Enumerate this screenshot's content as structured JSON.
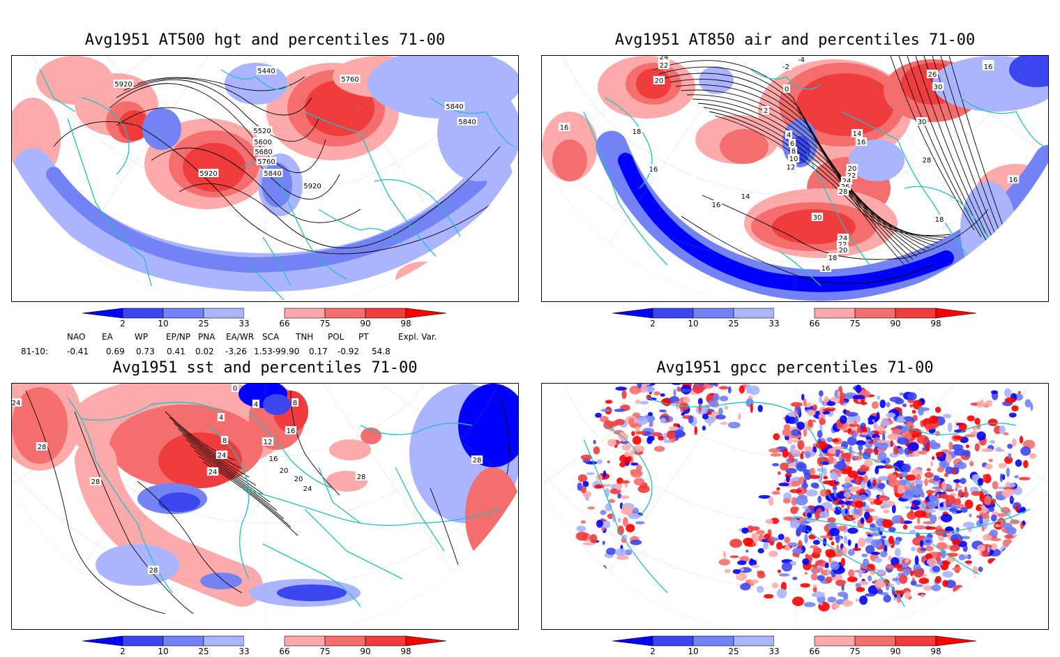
{
  "panels": [
    {
      "id": "hgt500",
      "title": "Avg1951 AT500 hgt and percentiles 71-00",
      "contour_labels": [
        "5440",
        "5760",
        "5920",
        "5520",
        "5600",
        "5680",
        "5760",
        "5840",
        "5920",
        "5920",
        "5840",
        "5840"
      ]
    },
    {
      "id": "air850",
      "title": "Avg1951 AT850 air and percentiles 71-00",
      "contour_labels": [
        "24",
        "22",
        "20",
        "-4",
        "-2",
        "0",
        "2",
        "4",
        "6",
        "8",
        "10",
        "12",
        "14",
        "16",
        "16",
        "18",
        "16",
        "16",
        "26",
        "30",
        "30",
        "28",
        "14",
        "16",
        "20",
        "22",
        "24",
        "26",
        "28",
        "30",
        "24",
        "22",
        "20",
        "18",
        "16",
        "16",
        "16",
        "18"
      ]
    },
    {
      "id": "sst",
      "title": "Avg1951 sst and percentiles 71-00",
      "contour_labels": [
        "24",
        "28",
        "28",
        "0",
        "4",
        "4",
        "8",
        "8",
        "12",
        "16",
        "16",
        "20",
        "24",
        "20",
        "24",
        "24",
        "28",
        "28",
        "28"
      ]
    },
    {
      "id": "gpcc",
      "title": "Avg1951 gpcc percentiles 71-00",
      "contour_labels": []
    }
  ],
  "colorbar": {
    "labels": [
      "2",
      "10",
      "25",
      "33",
      "66",
      "75",
      "90",
      "98"
    ],
    "colors": {
      "c0": "#0000ff",
      "c1": "#3c46f0",
      "c2": "#7382f5",
      "c3": "#aab4ff",
      "white": "#ffffff",
      "w1": "#ffaaaa",
      "w2": "#f56e6e",
      "w3": "#f03c3c",
      "w4": "#ff0000"
    }
  },
  "indices": {
    "headers": [
      "NAO",
      "EA",
      "WP",
      "EP/NP",
      "PNA",
      "EA/WR",
      "SCA",
      "TNH",
      "POL",
      "PT",
      "Expl. Var."
    ],
    "row_label": "81-10:",
    "values": [
      "-0.41",
      "0.69",
      "0.73",
      "0.41",
      "0.02",
      "-3.26",
      "1.53-99.90",
      "0.17",
      "-0.92",
      "54.8"
    ]
  },
  "map_colors": {
    "coast": "#20c0c0",
    "contour": "#000000",
    "grid": "#999999"
  }
}
